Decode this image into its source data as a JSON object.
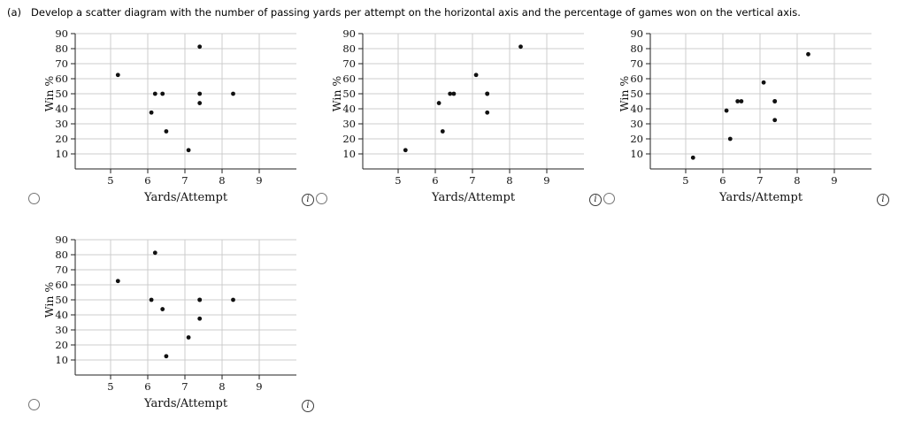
{
  "question": {
    "part_label": "(a)",
    "text": "Develop a scatter diagram with the number of passing yards per attempt on the horizontal axis and the percentage of games won on the vertical axis."
  },
  "ui": {
    "info_glyph": "i",
    "options": [
      {
        "name": "option-1",
        "selected": false
      },
      {
        "name": "option-2",
        "selected": false
      },
      {
        "name": "option-3",
        "selected": false
      },
      {
        "name": "option-4",
        "selected": false
      }
    ]
  },
  "colors": {
    "grid": "#cccccc",
    "axis": "#222222",
    "point": "#111111",
    "text": "#111111"
  },
  "chart_data": [
    {
      "type": "scatter",
      "xlabel": "Yards/Attempt",
      "ylabel": "Win %",
      "xlim": [
        4.05,
        10
      ],
      "ylim": [
        0,
        90
      ],
      "x_ticks": [
        5,
        6,
        7,
        8,
        9
      ],
      "y_ticks": [
        10,
        20,
        30,
        40,
        50,
        60,
        70,
        80,
        90
      ],
      "grid": true,
      "points": [
        [
          5.2,
          62.5
        ],
        [
          6.1,
          37.5
        ],
        [
          6.2,
          50
        ],
        [
          6.4,
          50
        ],
        [
          6.5,
          25
        ],
        [
          7.1,
          12.5
        ],
        [
          7.4,
          81.3
        ],
        [
          7.4,
          50
        ],
        [
          7.4,
          43.8
        ],
        [
          8.3,
          50
        ]
      ]
    },
    {
      "type": "scatter",
      "xlabel": "Yards/Attempt",
      "ylabel": "Win %",
      "xlim": [
        4.05,
        10
      ],
      "ylim": [
        0,
        90
      ],
      "x_ticks": [
        5,
        6,
        7,
        8,
        9
      ],
      "y_ticks": [
        10,
        20,
        30,
        40,
        50,
        60,
        70,
        80,
        90
      ],
      "grid": true,
      "points": [
        [
          5.2,
          12.5
        ],
        [
          6.1,
          43.8
        ],
        [
          6.2,
          25
        ],
        [
          6.4,
          50
        ],
        [
          6.5,
          50
        ],
        [
          7.1,
          62.5
        ],
        [
          7.4,
          37.5
        ],
        [
          7.4,
          50
        ],
        [
          7.4,
          50
        ],
        [
          8.3,
          81.3
        ]
      ]
    },
    {
      "type": "scatter",
      "xlabel": "Yards/Attempt",
      "ylabel": "Win %",
      "xlim": [
        4.05,
        10
      ],
      "ylim": [
        0,
        90
      ],
      "x_ticks": [
        5,
        6,
        7,
        8,
        9
      ],
      "y_ticks": [
        10,
        20,
        30,
        40,
        50,
        60,
        70,
        80,
        90
      ],
      "grid": true,
      "points": [
        [
          5.2,
          7.5
        ],
        [
          6.1,
          38.8
        ],
        [
          6.2,
          20
        ],
        [
          6.4,
          45
        ],
        [
          6.5,
          45
        ],
        [
          7.1,
          57.5
        ],
        [
          7.4,
          32.5
        ],
        [
          7.4,
          45
        ],
        [
          7.4,
          45
        ],
        [
          8.3,
          76.3
        ]
      ]
    },
    {
      "type": "scatter",
      "xlabel": "Yards/Attempt",
      "ylabel": "Win %",
      "xlim": [
        4.05,
        10
      ],
      "ylim": [
        0,
        90
      ],
      "x_ticks": [
        5,
        6,
        7,
        8,
        9
      ],
      "y_ticks": [
        10,
        20,
        30,
        40,
        50,
        60,
        70,
        80,
        90
      ],
      "grid": true,
      "points": [
        [
          5.2,
          62.5
        ],
        [
          6.1,
          50
        ],
        [
          6.2,
          81.3
        ],
        [
          6.4,
          43.8
        ],
        [
          6.5,
          12.5
        ],
        [
          7.1,
          25
        ],
        [
          7.4,
          37.5
        ],
        [
          7.4,
          50
        ],
        [
          7.4,
          50
        ],
        [
          8.3,
          50
        ]
      ]
    }
  ]
}
